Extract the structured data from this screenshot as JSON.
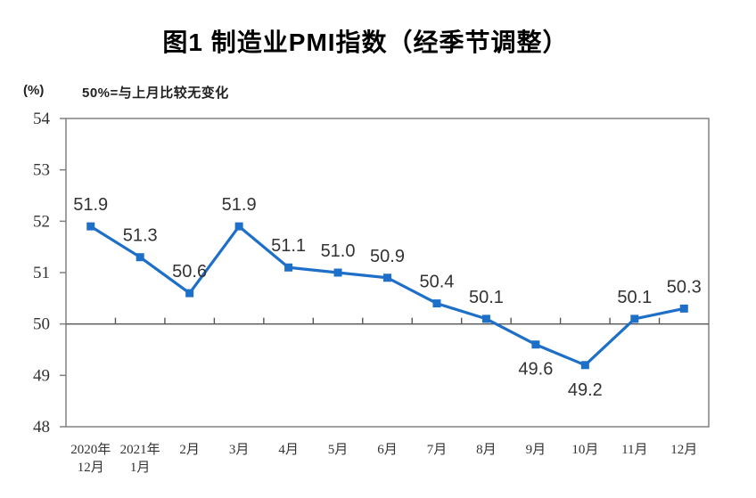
{
  "title": "图1 制造业PMI指数（经季节调整）",
  "unit_label": "(%)",
  "subtitle": "50%=与上月比较无变化",
  "chart_data": {
    "type": "line",
    "title": "图1 制造业PMI指数（经季节调整）",
    "subtitle": "50%=与上月比较无变化",
    "xlabel": "",
    "ylabel": "(%)",
    "categories": [
      "2020年12月",
      "2021年1月",
      "2月",
      "3月",
      "4月",
      "5月",
      "6月",
      "7月",
      "8月",
      "9月",
      "10月",
      "11月",
      "12月"
    ],
    "category_lines": [
      [
        "2020年",
        "12月"
      ],
      [
        "2021年",
        "1月"
      ],
      [
        "2月"
      ],
      [
        "3月"
      ],
      [
        "4月"
      ],
      [
        "5月"
      ],
      [
        "6月"
      ],
      [
        "7月"
      ],
      [
        "8月"
      ],
      [
        "9月"
      ],
      [
        "10月"
      ],
      [
        "11月"
      ],
      [
        "12月"
      ]
    ],
    "series": [
      {
        "name": "制造业PMI",
        "values": [
          51.9,
          51.3,
          50.6,
          51.9,
          51.1,
          51.0,
          50.9,
          50.4,
          50.1,
          49.6,
          49.2,
          50.1,
          50.3
        ],
        "value_labels": [
          "51.9",
          "51.3",
          "50.6",
          "51.9",
          "51.1",
          "51.0",
          "50.9",
          "50.4",
          "50.1",
          "49.6",
          "49.2",
          "50.1",
          "50.3"
        ],
        "value_label_position": [
          "above",
          "above",
          "above",
          "above",
          "above",
          "above",
          "above",
          "above",
          "above",
          "below",
          "below",
          "above",
          "above"
        ],
        "marker": "square"
      }
    ],
    "ylim": [
      48,
      54
    ],
    "y_ticks": [
      48,
      49,
      50,
      51,
      52,
      53,
      54
    ],
    "reference_line_value": 50,
    "grid": "off",
    "legend": "none",
    "colors": {
      "series": "#1E6FC8",
      "axis_box": "#808080",
      "reference_line": "#555555",
      "value_labels": "#333333",
      "axis_labels": "#333333",
      "title": "#000000"
    }
  }
}
